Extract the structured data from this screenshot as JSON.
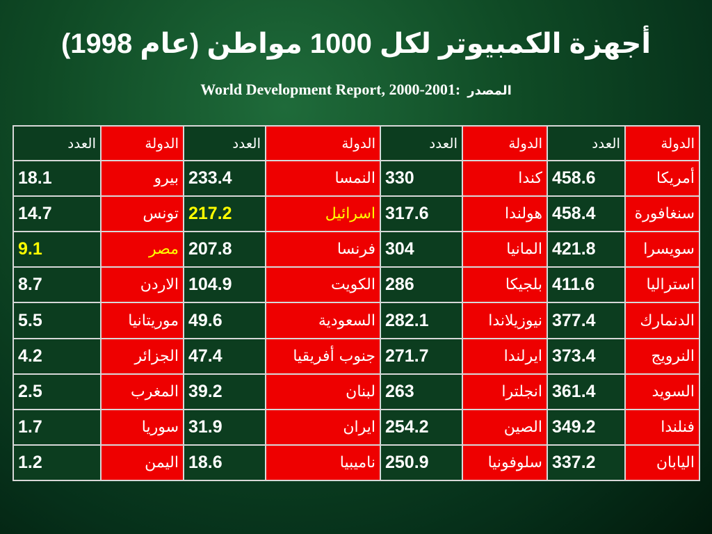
{
  "title": "أجهزة الكمبيوتر لكل 1000 مواطن (عام 1998)",
  "source": {
    "label": "المصدر",
    "text": "World Development Report, 2000-2001:"
  },
  "table": {
    "headers": [
      "الدولة",
      "العدد",
      "الدولة",
      "العدد",
      "الدولة",
      "العدد",
      "الدولة",
      "العدد"
    ],
    "rows": [
      [
        "أمريكا",
        "458.6",
        "كندا",
        "330",
        "النمسا",
        "233.4",
        "بيرو",
        "18.1"
      ],
      [
        "سنغافورة",
        "458.4",
        "هولندا",
        "317.6",
        "اسرائيل",
        "217.2",
        "تونس",
        "14.7"
      ],
      [
        "سويسرا",
        "421.8",
        "المانيا",
        "304",
        "فرنسا",
        "207.8",
        "مصر",
        "9.1"
      ],
      [
        "استراليا",
        "411.6",
        "بلجيكا",
        "286",
        "الكويت",
        "104.9",
        "الاردن",
        "8.7"
      ],
      [
        "الدنمارك",
        "377.4",
        "نيوزيلاندا",
        "282.1",
        "السعودية",
        "49.6",
        "موريتانيا",
        "5.5"
      ],
      [
        "النرويج",
        "373.4",
        "ايرلندا",
        "271.7",
        "جنوب أفريقيا",
        "47.4",
        "الجزائر",
        "4.2"
      ],
      [
        "السويد",
        "361.4",
        "انجلترا",
        "263",
        "لبنان",
        "39.2",
        "المغرب",
        "2.5"
      ],
      [
        "فنلندا",
        "349.2",
        "الصين",
        "254.2",
        "ايران",
        "31.9",
        "سوريا",
        "1.7"
      ],
      [
        "اليابان",
        "337.2",
        "سلوفونيا",
        "250.9",
        "ناميبيا",
        "18.6",
        "اليمن",
        "1.2"
      ]
    ],
    "highlighted": [
      {
        "country": "اسرائيل",
        "value": "217.2"
      },
      {
        "country": "مصر",
        "value": "9.1"
      }
    ]
  },
  "colors": {
    "background": "#0f4a25",
    "country_cell": "#ee0000",
    "count_cell": "#0c3d1f",
    "highlight_text": "#ffff00",
    "border": "#d8d8d8"
  }
}
